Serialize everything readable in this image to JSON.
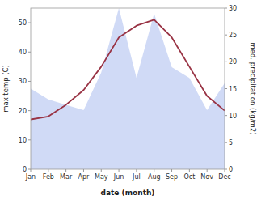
{
  "chart_data": {
    "type": "line",
    "xlabel": "date (month)",
    "ylabel": "max temp (C)",
    "y2label": "med. precipitation (kg/m2)",
    "categories": [
      "Jan",
      "Feb",
      "Mar",
      "Apr",
      "May",
      "Jun",
      "Jul",
      "Aug",
      "Sep",
      "Oct",
      "Nov",
      "Dec"
    ],
    "ylim": [
      0,
      55
    ],
    "yticks": [
      0,
      10,
      20,
      30,
      40,
      50
    ],
    "y2lim": [
      0,
      30
    ],
    "y2ticks": [
      0,
      5,
      10,
      15,
      20,
      25,
      30
    ],
    "grid": false,
    "series": [
      {
        "type": "area",
        "axis": "y2",
        "color": "#aabbee",
        "values": [
          15,
          13,
          12,
          11,
          18,
          30,
          17,
          29,
          19,
          17,
          11,
          16
        ]
      },
      {
        "type": "line",
        "color": "#993344",
        "values": [
          17,
          18,
          22,
          27,
          35,
          45,
          49,
          51,
          45,
          35,
          25,
          20
        ]
      }
    ]
  }
}
